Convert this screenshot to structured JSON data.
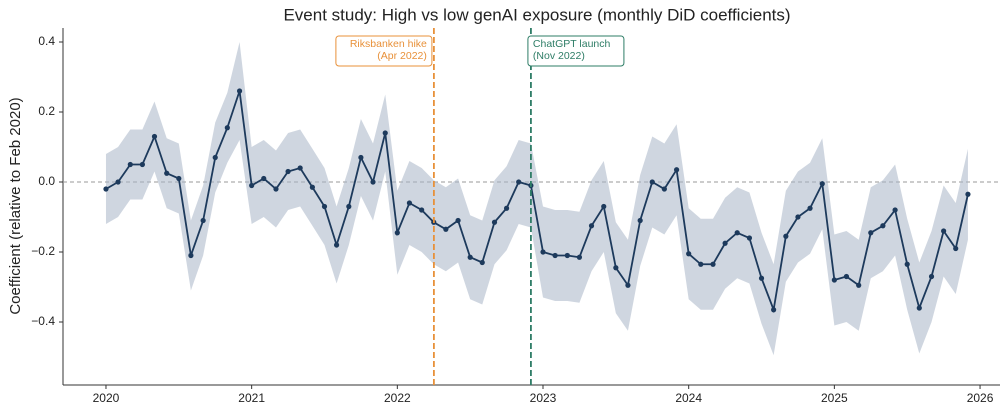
{
  "chart_data": {
    "type": "line",
    "title": "Event study: High vs low genAI exposure (monthly DiD coefficients)",
    "y_label": "Coefficient (relative to Feb 2020)",
    "x": [
      2020,
      2020.083,
      2020.167,
      2020.25,
      2020.333,
      2020.417,
      2020.5,
      2020.583,
      2020.667,
      2020.75,
      2020.833,
      2020.917,
      2021,
      2021.083,
      2021.167,
      2021.25,
      2021.333,
      2021.417,
      2021.5,
      2021.583,
      2021.667,
      2021.75,
      2021.833,
      2021.917,
      2022,
      2022.083,
      2022.167,
      2022.25,
      2022.333,
      2022.417,
      2022.5,
      2022.583,
      2022.667,
      2022.75,
      2022.833,
      2022.917,
      2023,
      2023.083,
      2023.167,
      2023.25,
      2023.333,
      2023.417,
      2023.5,
      2023.583,
      2023.667,
      2023.75,
      2023.833,
      2023.917,
      2024,
      2024.083,
      2024.167,
      2024.25,
      2024.333,
      2024.417,
      2024.5,
      2024.583,
      2024.667,
      2024.75,
      2024.833,
      2024.917,
      2025,
      2025.083,
      2025.167,
      2025.25,
      2025.333,
      2025.417,
      2025.5,
      2025.583,
      2025.667,
      2025.75,
      2025.833,
      2025.917
    ],
    "values": [
      -0.02,
      0,
      0.05,
      0.05,
      0.13,
      0.025,
      0.01,
      -0.21,
      -0.11,
      0.07,
      0.155,
      0.26,
      -0.01,
      0.01,
      -0.02,
      0.03,
      0.04,
      -0.015,
      -0.07,
      -0.18,
      -0.07,
      0.07,
      0.0,
      0.14,
      -0.145,
      -0.06,
      -0.08,
      -0.115,
      -0.135,
      -0.11,
      -0.215,
      -0.23,
      -0.115,
      -0.075,
      0.0,
      -0.01,
      -0.2,
      -0.21,
      -0.21,
      -0.215,
      -0.125,
      -0.07,
      -0.245,
      -0.295,
      -0.11,
      0.0,
      -0.02,
      0.035,
      -0.205,
      -0.235,
      -0.235,
      -0.175,
      -0.145,
      -0.16,
      -0.275,
      -0.365,
      -0.155,
      -0.1,
      -0.075,
      -0.005,
      -0.28,
      -0.27,
      -0.295,
      -0.145,
      -0.125,
      -0.08,
      -0.235,
      -0.36,
      -0.27,
      -0.14,
      -0.19,
      -0.035
    ],
    "lower": [
      -0.12,
      -0.1,
      -0.05,
      -0.05,
      0.03,
      -0.075,
      -0.09,
      -0.31,
      -0.21,
      -0.03,
      0.055,
      0.12,
      -0.12,
      -0.1,
      -0.13,
      -0.08,
      -0.07,
      -0.125,
      -0.18,
      -0.29,
      -0.18,
      -0.04,
      -0.11,
      0.03,
      -0.265,
      -0.18,
      -0.2,
      -0.235,
      -0.255,
      -0.23,
      -0.335,
      -0.35,
      -0.235,
      -0.195,
      -0.12,
      -0.13,
      -0.33,
      -0.34,
      -0.34,
      -0.345,
      -0.255,
      -0.2,
      -0.375,
      -0.425,
      -0.24,
      -0.13,
      -0.15,
      -0.095,
      -0.335,
      -0.365,
      -0.365,
      -0.305,
      -0.275,
      -0.29,
      -0.405,
      -0.495,
      -0.285,
      -0.23,
      -0.205,
      -0.135,
      -0.41,
      -0.4,
      -0.425,
      -0.275,
      -0.255,
      -0.21,
      -0.365,
      -0.49,
      -0.4,
      -0.27,
      -0.32,
      -0.165
    ],
    "upper": [
      0.08,
      0.1,
      0.15,
      0.15,
      0.23,
      0.125,
      0.11,
      -0.11,
      -0.01,
      0.17,
      0.255,
      0.4,
      0.1,
      0.12,
      0.09,
      0.14,
      0.15,
      0.095,
      0.04,
      -0.07,
      0.04,
      0.18,
      0.11,
      0.25,
      -0.025,
      0.06,
      0.04,
      0.005,
      -0.015,
      0.01,
      -0.095,
      -0.11,
      0.005,
      0.045,
      0.12,
      0.11,
      -0.07,
      -0.08,
      -0.08,
      -0.085,
      0.005,
      0.06,
      -0.115,
      -0.165,
      0.02,
      0.13,
      0.11,
      0.165,
      -0.075,
      -0.105,
      -0.105,
      -0.045,
      -0.015,
      -0.03,
      -0.145,
      -0.235,
      -0.025,
      0.03,
      0.055,
      0.125,
      -0.15,
      -0.14,
      -0.165,
      -0.015,
      0.005,
      0.05,
      -0.105,
      -0.23,
      -0.14,
      -0.01,
      -0.06,
      0.095
    ],
    "color": "#1d3a5c",
    "band_color": "#a8b4c6",
    "reference_line": 0,
    "xlim": [
      2019.705,
      2026.137
    ],
    "xticks": [
      2020,
      2021,
      2022,
      2023,
      2024,
      2025,
      2026
    ],
    "ylim": [
      -0.58,
      0.44
    ],
    "yticks": [
      {
        "value": -0.4,
        "label": "−0.4"
      },
      {
        "value": -0.2,
        "label": "−0.2"
      },
      {
        "value": 0,
        "label": "0.0"
      },
      0.2,
      0.4
    ],
    "annotations": [
      {
        "x": 2022.251,
        "lines": [
          "Riksbanken hike",
          "(Apr 2022)"
        ],
        "color": "#e8913a"
      },
      {
        "x": 2022.917,
        "lines": [
          "ChatGPT launch",
          "(Nov 2022)"
        ],
        "color": "#2e7d66"
      }
    ]
  }
}
